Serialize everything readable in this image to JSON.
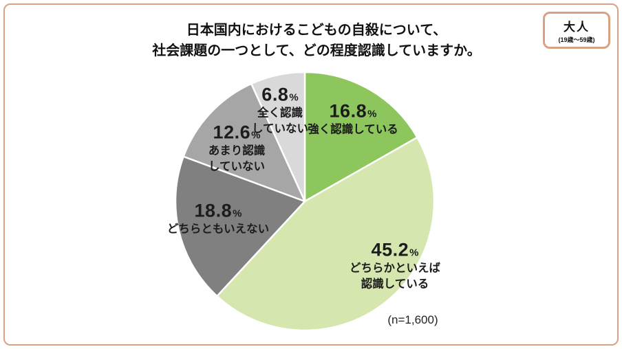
{
  "title": {
    "line1": "日本国内におけるこどもの自殺について、",
    "line2": "社会課題の一つとして、どの程度認識していますか。"
  },
  "badge": {
    "label": "大人",
    "sub": "(19歳〜59歳)"
  },
  "sample_note": "(n=1,600)",
  "colors": {
    "frame_border": "#d9a184",
    "slice_border": "#ffffff",
    "text": "#1c1c1c"
  },
  "chart_data": {
    "type": "pie",
    "title": "日本国内におけるこどもの自殺について、社会課題の一つとして、どの程度認識していますか。",
    "start_angle_deg": 0,
    "direction": "clockwise",
    "unit": "%",
    "n_label": "(n=1,600)",
    "n": 1600,
    "slices": [
      {
        "label": "強く認識している",
        "value": 16.8,
        "pct_display": "16.8",
        "color": "#8cc65c",
        "label_lines": [
          "強く認識している"
        ]
      },
      {
        "label": "どちらかといえば認識している",
        "value": 45.2,
        "pct_display": "45.2",
        "color": "#d5e7ae",
        "label_lines": [
          "どちらかといえば",
          "認識している"
        ]
      },
      {
        "label": "どちらともいえない",
        "value": 18.8,
        "pct_display": "18.8",
        "color": "#808080",
        "label_lines": [
          "どちらともいえない"
        ]
      },
      {
        "label": "あまり認識していない",
        "value": 12.6,
        "pct_display": "12.6",
        "color": "#a6a6a6",
        "label_lines": [
          "あまり認識",
          "していない"
        ]
      },
      {
        "label": "全く認識していない",
        "value": 6.8,
        "pct_display": "6.8",
        "color": "#d9d9d9",
        "label_lines": [
          "全く認識",
          "していない"
        ]
      }
    ]
  }
}
